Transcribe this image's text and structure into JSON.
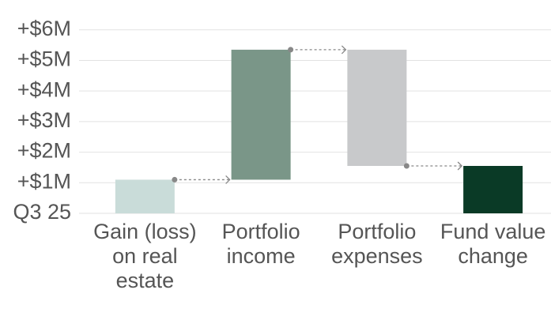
{
  "chart_data": {
    "type": "waterfall",
    "categories": [
      "Gain (loss) on real estate",
      "Portfolio income",
      "Portfolio expenses",
      "Fund value change"
    ],
    "values": [
      1.1,
      4.25,
      -3.8,
      1.55
    ],
    "total": [
      false,
      false,
      false,
      true
    ],
    "colors": [
      "#c9dcd9",
      "#7a9688",
      "#c8c9cb",
      "#0a3a26"
    ],
    "ylim": [
      0,
      6.2
    ],
    "yticks": [
      {
        "value": 0,
        "label": "Q3 25"
      },
      {
        "value": 1,
        "label": "+$1M"
      },
      {
        "value": 2,
        "label": "+$2M"
      },
      {
        "value": 3,
        "label": "+$3M"
      },
      {
        "value": 4,
        "label": "+$4M"
      },
      {
        "value": 5,
        "label": "+$5M"
      },
      {
        "value": 6,
        "label": "+$6M"
      }
    ],
    "grid": true
  }
}
